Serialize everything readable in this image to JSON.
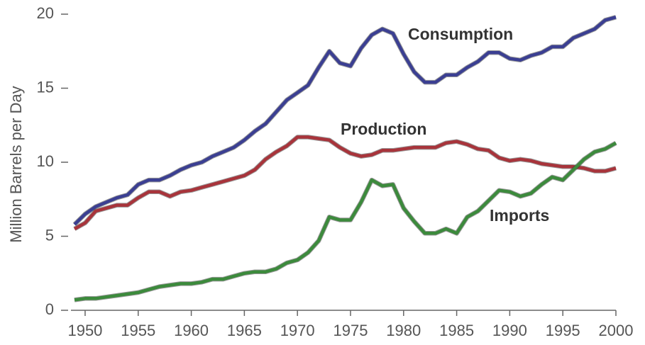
{
  "chart_data": {
    "type": "line",
    "y_label": "Million Barrels per Day",
    "x": [
      1949,
      1950,
      1951,
      1952,
      1953,
      1954,
      1955,
      1956,
      1957,
      1958,
      1959,
      1960,
      1961,
      1962,
      1963,
      1964,
      1965,
      1966,
      1967,
      1968,
      1969,
      1970,
      1971,
      1972,
      1973,
      1974,
      1975,
      1976,
      1977,
      1978,
      1979,
      1980,
      1981,
      1982,
      1983,
      1984,
      1985,
      1986,
      1987,
      1988,
      1989,
      1990,
      1991,
      1992,
      1993,
      1994,
      1995,
      1996,
      1997,
      1998,
      1999,
      2000
    ],
    "series": [
      {
        "name": "Consumption",
        "color": "#3b3f92",
        "values": [
          5.8,
          6.5,
          7.0,
          7.3,
          7.6,
          7.8,
          8.5,
          8.8,
          8.8,
          9.1,
          9.5,
          9.8,
          10.0,
          10.4,
          10.7,
          11.0,
          11.5,
          12.1,
          12.6,
          13.4,
          14.2,
          14.7,
          15.2,
          16.4,
          17.5,
          16.7,
          16.5,
          17.7,
          18.6,
          19.0,
          18.7,
          17.3,
          16.1,
          15.4,
          15.4,
          15.9,
          15.9,
          16.4,
          16.8,
          17.4,
          17.4,
          17.0,
          16.9,
          17.2,
          17.4,
          17.8,
          17.8,
          18.4,
          18.7,
          19.0,
          19.6,
          19.8
        ]
      },
      {
        "name": "Production",
        "color": "#a8343b",
        "values": [
          5.5,
          5.9,
          6.7,
          6.9,
          7.1,
          7.1,
          7.6,
          8.0,
          8.0,
          7.7,
          8.0,
          8.1,
          8.3,
          8.5,
          8.7,
          8.9,
          9.1,
          9.5,
          10.2,
          10.7,
          11.1,
          11.7,
          11.7,
          11.6,
          11.5,
          11.0,
          10.6,
          10.4,
          10.5,
          10.8,
          10.8,
          10.9,
          11.0,
          11.0,
          11.0,
          11.3,
          11.4,
          11.2,
          10.9,
          10.8,
          10.3,
          10.1,
          10.2,
          10.1,
          9.9,
          9.8,
          9.7,
          9.7,
          9.6,
          9.4,
          9.4,
          9.6
        ]
      },
      {
        "name": "Imports",
        "color": "#3c8a3c",
        "values": [
          0.7,
          0.8,
          0.8,
          0.9,
          1.0,
          1.1,
          1.2,
          1.4,
          1.6,
          1.7,
          1.8,
          1.8,
          1.9,
          2.1,
          2.1,
          2.3,
          2.5,
          2.6,
          2.6,
          2.8,
          3.2,
          3.4,
          3.9,
          4.7,
          6.3,
          6.1,
          6.1,
          7.3,
          8.8,
          8.4,
          8.5,
          6.9,
          6.0,
          5.2,
          5.2,
          5.5,
          5.2,
          6.3,
          6.7,
          7.4,
          8.1,
          8.0,
          7.7,
          7.9,
          8.5,
          9.0,
          8.8,
          9.5,
          10.2,
          10.7,
          10.9,
          11.3
        ]
      }
    ],
    "xlim": [
      1949,
      2000
    ],
    "xticks": [
      1950,
      1955,
      1960,
      1965,
      1970,
      1975,
      1980,
      1985,
      1990,
      1995,
      2000
    ],
    "ylim": [
      0,
      20
    ],
    "yticks": [
      0,
      5,
      10,
      15,
      20
    ]
  }
}
